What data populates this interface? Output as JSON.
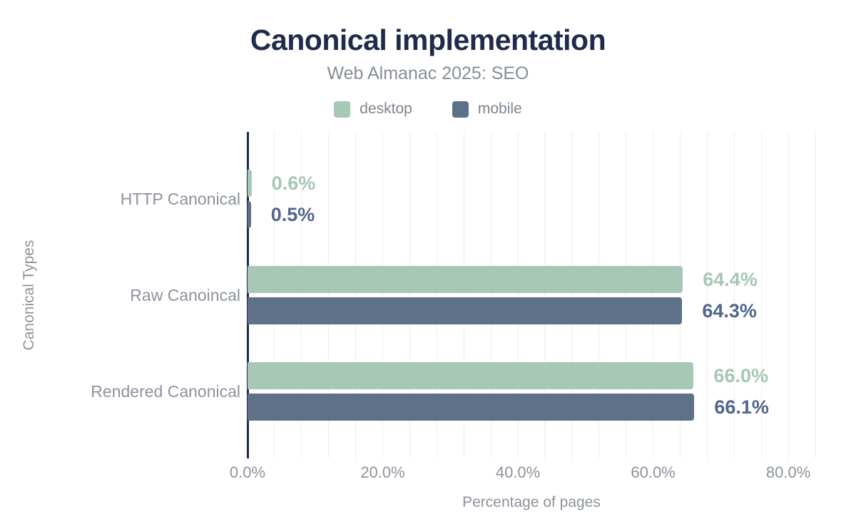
{
  "header": {
    "title": "Canonical implementation",
    "subtitle": "Web Almanac 2025: SEO"
  },
  "colors": {
    "title": "#1e2b4a",
    "subtitle_gray": "#878e96",
    "label_gray": "#8d939b",
    "gridline": "#ededed",
    "axis_line": "#1e2b4a",
    "desktop": "#a7c8b6",
    "mobile": "#5f7089",
    "desktop_label": "#a6c7b5",
    "mobile_label": "#52658b"
  },
  "legend": [
    {
      "id": "desktop",
      "label": "desktop",
      "color": "#a7c8b6"
    },
    {
      "id": "mobile",
      "label": "mobile",
      "color": "#5f7089"
    }
  ],
  "chart_data": {
    "type": "bar",
    "orientation": "horizontal",
    "title": "Canonical implementation",
    "subtitle": "Web Almanac 2025: SEO",
    "categories": [
      "HTTP Canonical",
      "Raw Canoincal",
      "Rendered Canonical"
    ],
    "series": [
      {
        "name": "desktop",
        "color": "#a7c8b6",
        "label_color": "#a6c7b5",
        "values": [
          0.6,
          64.4,
          66.0
        ],
        "value_labels": [
          "0.6%",
          "64.4%",
          "66.0%"
        ]
      },
      {
        "name": "mobile",
        "color": "#5f7089",
        "label_color": "#52658b",
        "values": [
          0.5,
          64.3,
          66.1
        ],
        "value_labels": [
          "0.5%",
          "64.3%",
          "66.1%"
        ]
      }
    ],
    "xlabel": "Percentage of pages",
    "ylabel": "Canonical Types",
    "x_ticks": [
      "0.0%",
      "20.0%",
      "40.0%",
      "60.0%",
      "80.0%"
    ],
    "x_tick_values": [
      0,
      20,
      40,
      60,
      80
    ],
    "xlim": [
      0,
      84
    ],
    "minor_grid_step": 4,
    "grid": true,
    "legend_position": "top"
  }
}
